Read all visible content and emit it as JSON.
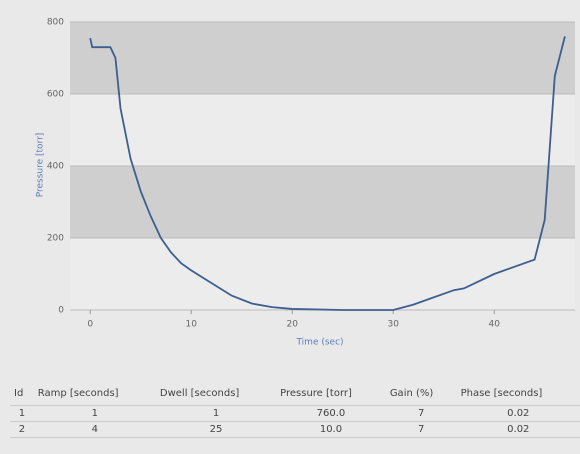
{
  "chart_data": {
    "type": "line",
    "x_label": "Time (sec)",
    "y_label": "Pressure [torr]",
    "x": [
      0,
      0.2,
      2,
      2.5,
      3,
      4,
      5,
      6,
      7,
      8,
      9,
      10,
      12,
      14,
      16,
      18,
      20,
      25,
      30,
      32,
      34,
      36,
      37,
      40,
      44,
      45,
      46,
      47
    ],
    "series": [
      {
        "color": "#3d5f8f",
        "values": [
          755,
          730,
          730,
          700,
          560,
          420,
          330,
          260,
          200,
          160,
          130,
          110,
          75,
          40,
          18,
          8,
          3,
          0,
          0,
          15,
          35,
          55,
          60,
          100,
          140,
          250,
          650,
          760
        ]
      }
    ],
    "xlim": [
      -2,
      48
    ],
    "xticks": [
      0,
      10,
      20,
      30,
      40
    ],
    "ylim": [
      0,
      800
    ],
    "yticks": [
      0,
      200,
      400,
      600,
      800
    ],
    "grid": true
  },
  "table": {
    "header": [
      "Id",
      "Ramp [seconds]",
      "Dwell [seconds]",
      "Pressure [torr]",
      "Gain (%)",
      "Phase [seconds]"
    ],
    "rows": [
      [
        "1",
        "1",
        "1",
        "760.0",
        "7",
        "0.02"
      ],
      [
        "2",
        "4",
        "25",
        "10.0",
        "7",
        "0.02"
      ]
    ]
  }
}
